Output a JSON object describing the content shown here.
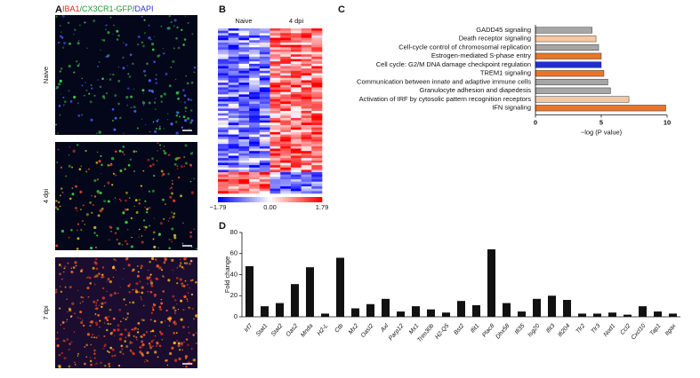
{
  "panels": {
    "a": {
      "letter": "A",
      "stain_parts": [
        "IBA1",
        "/CX3CR1-GFP",
        "/DAPI"
      ],
      "stain_colors": [
        "#e0201c",
        "#1c9a34",
        "#2a35c8"
      ],
      "rows": [
        "Naive",
        "4 dpi",
        "7 dpi"
      ]
    },
    "b": {
      "letter": "B",
      "columns": [
        "Naive",
        "4 dpi"
      ],
      "colorbar": {
        "lim": [
          -1.79,
          1.79
        ],
        "ticks": [
          {
            "value": -1.79,
            "label": "−1.79"
          },
          {
            "value": 0,
            "label": "0.00"
          },
          1.79
        ]
      }
    }
  },
  "chart_data": [
    {
      "letter": "C",
      "type": "barh",
      "categories": [
        "GADD45 signaling",
        "Death receptor signaling",
        "Cell-cycle control of chromosomal replication",
        "Estrogen-mediated S-phase entry",
        "Cell cycle: G2/M DNA damage checkpoint regulation",
        "TREM1 signaling",
        "Communication between innate and adaptive immune cells",
        "Granulocyte adhesion and diapedesis",
        "Activation of IRF by cytosolic pattern recognition receptors",
        "IFN signaling"
      ],
      "values": [
        4.3,
        4.6,
        4.8,
        5.0,
        5.0,
        5.2,
        5.5,
        5.7,
        7.1,
        9.9
      ],
      "colors": [
        "#a6a6a6",
        "#f7c8a0",
        "#a6a6a6",
        "#e8752c",
        "#2030c8",
        "#e8752c",
        "#a6a6a6",
        "#a6a6a6",
        "#f7c8a0",
        "#e8752c"
      ],
      "xlabel": "−log (P value)",
      "xlim": [
        0,
        10
      ],
      "xticks": [
        0,
        5,
        10
      ]
    },
    {
      "letter": "D",
      "type": "bar",
      "categories": [
        "Irf7",
        "Stat1",
        "Stat2",
        "Oas2",
        "Mnda",
        "H2-L",
        "Ctb",
        "Mx2",
        "Oasl2",
        "Axl",
        "Parp12",
        "Mx1",
        "Trim30b",
        "H2-Q5",
        "Bst2",
        "Ifit1",
        "Plac8",
        "Dhx58",
        "Ifi35",
        "Isg20",
        "Ifit3",
        "Ifi204",
        "Tlr2",
        "Tlr3",
        "Nod1",
        "Ccl2",
        "Cxcl10",
        "Tap1",
        "Itgax"
      ],
      "values": [
        48,
        10,
        13,
        31,
        47,
        3,
        56,
        8,
        12,
        17,
        5,
        10,
        7,
        4,
        15,
        11,
        64,
        13,
        5,
        17,
        20,
        16,
        3,
        3,
        4,
        2,
        10,
        5,
        3
      ],
      "color": "#111111",
      "ylabel": "Fold change",
      "ylim": [
        0,
        80
      ],
      "yticks": [
        0,
        20,
        40,
        60,
        80
      ]
    }
  ]
}
